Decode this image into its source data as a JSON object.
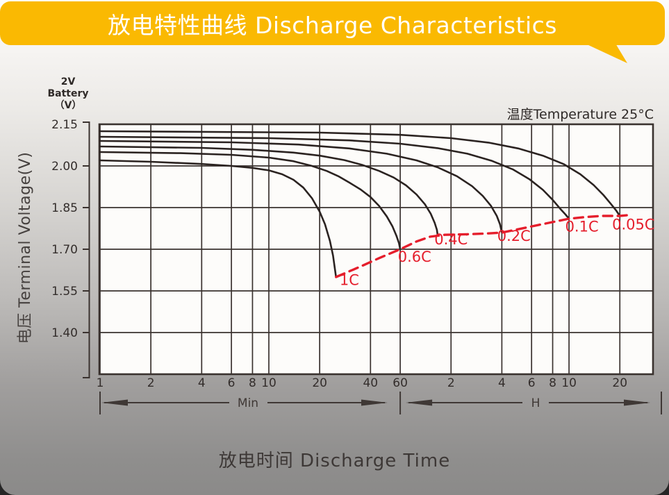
{
  "banner": {
    "title": "放电特性曲线 Discharge Characteristics",
    "color": "#FAB902",
    "text_color": "#FFFFFF"
  },
  "footer_title": "放电时间 Discharge Time",
  "chart_data": {
    "type": "line",
    "title": "放电特性曲线 Discharge Characteristics",
    "xlabel": "放电时间 Discharge Time",
    "ylabel": "电压 Terminal Voltage(V)",
    "battery_note": {
      "lines": [
        "2V",
        "Battery",
        "（V）"
      ]
    },
    "annotation": "温度Temperature 25°C",
    "x_scale": "log",
    "x_unit_groups": [
      {
        "unit": "Min",
        "ticks": [
          1,
          2,
          4,
          6,
          8,
          10,
          20,
          40,
          60
        ]
      },
      {
        "unit": "H",
        "ticks": [
          2,
          4,
          6,
          8,
          10,
          20
        ]
      }
    ],
    "y_ticks": [
      "2.15",
      "2.00",
      "1.85",
      "1.70",
      "1.55",
      "1.40"
    ],
    "ylim": [
      1.25,
      2.15
    ],
    "xlim_minutes": [
      1,
      1900
    ],
    "grid": true,
    "colors": {
      "curve": "#2B2321",
      "grid": "#3A322F",
      "envelope": "#E51E2C",
      "text": "#332D2B",
      "arrow": "#3F3835"
    },
    "series": [
      {
        "name": "1C",
        "points": [
          [
            1,
            2.02
          ],
          [
            2,
            2.015
          ],
          [
            4,
            2.007
          ],
          [
            6,
            2.0
          ],
          [
            8,
            1.993
          ],
          [
            10,
            1.984
          ],
          [
            12,
            1.97
          ],
          [
            14,
            1.95
          ],
          [
            16,
            1.922
          ],
          [
            18,
            1.884
          ],
          [
            20,
            1.835
          ],
          [
            21.5,
            1.79
          ],
          [
            23,
            1.73
          ],
          [
            24,
            1.677
          ],
          [
            25,
            1.6
          ]
        ]
      },
      {
        "name": "0.6C",
        "points": [
          [
            1,
            2.05
          ],
          [
            3,
            2.046
          ],
          [
            6,
            2.04
          ],
          [
            10,
            2.03
          ],
          [
            14,
            2.017
          ],
          [
            18,
            2.0
          ],
          [
            22,
            1.982
          ],
          [
            26,
            1.962
          ],
          [
            30,
            1.94
          ],
          [
            35,
            1.915
          ],
          [
            40,
            1.888
          ],
          [
            45,
            1.856
          ],
          [
            50,
            1.818
          ],
          [
            54,
            1.782
          ],
          [
            57,
            1.748
          ],
          [
            59,
            1.722
          ],
          [
            60,
            1.7
          ]
        ]
      },
      {
        "name": "0.4C",
        "points": [
          [
            1,
            2.07
          ],
          [
            4,
            2.065
          ],
          [
            8,
            2.058
          ],
          [
            14,
            2.048
          ],
          [
            20,
            2.037
          ],
          [
            28,
            2.021
          ],
          [
            36,
            2.003
          ],
          [
            45,
            1.982
          ],
          [
            55,
            1.958
          ],
          [
            65,
            1.93
          ],
          [
            75,
            1.897
          ],
          [
            84,
            1.862
          ],
          [
            91,
            1.828
          ],
          [
            96,
            1.795
          ],
          [
            99,
            1.77
          ],
          [
            100,
            1.75
          ]
        ]
      },
      {
        "name": "0.2C",
        "points": [
          [
            1,
            2.09
          ],
          [
            6,
            2.085
          ],
          [
            15,
            2.077
          ],
          [
            30,
            2.063
          ],
          [
            50,
            2.044
          ],
          [
            75,
            2.02
          ],
          [
            100,
            1.995
          ],
          [
            130,
            1.963
          ],
          [
            160,
            1.927
          ],
          [
            185,
            1.892
          ],
          [
            207,
            1.856
          ],
          [
            224,
            1.82
          ],
          [
            234,
            1.79
          ],
          [
            240,
            1.76
          ]
        ]
      },
      {
        "name": "0.1C",
        "points": [
          [
            1,
            2.105
          ],
          [
            10,
            2.1
          ],
          [
            30,
            2.092
          ],
          [
            60,
            2.08
          ],
          [
            100,
            2.064
          ],
          [
            150,
            2.044
          ],
          [
            210,
            2.018
          ],
          [
            280,
            1.987
          ],
          [
            350,
            1.952
          ],
          [
            420,
            1.914
          ],
          [
            480,
            1.878
          ],
          [
            530,
            1.847
          ],
          [
            570,
            1.826
          ],
          [
            600,
            1.81
          ]
        ]
      },
      {
        "name": "0.05C",
        "points": [
          [
            1,
            2.125
          ],
          [
            20,
            2.12
          ],
          [
            60,
            2.112
          ],
          [
            120,
            2.1
          ],
          [
            200,
            2.084
          ],
          [
            300,
            2.063
          ],
          [
            420,
            2.037
          ],
          [
            560,
            2.006
          ],
          [
            700,
            1.97
          ],
          [
            840,
            1.931
          ],
          [
            960,
            1.895
          ],
          [
            1060,
            1.864
          ],
          [
            1140,
            1.84
          ],
          [
            1200,
            1.82
          ]
        ]
      }
    ],
    "envelope": {
      "name": "discharge-cutoff-line",
      "style": "dashed",
      "points": [
        [
          25,
          1.6
        ],
        [
          35,
          1.638
        ],
        [
          45,
          1.668
        ],
        [
          60,
          1.7
        ],
        [
          75,
          1.728
        ],
        [
          90,
          1.745
        ],
        [
          110,
          1.752
        ],
        [
          150,
          1.754
        ],
        [
          200,
          1.757
        ],
        [
          240,
          1.76
        ],
        [
          300,
          1.772
        ],
        [
          400,
          1.788
        ],
        [
          500,
          1.8
        ],
        [
          600,
          1.81
        ],
        [
          750,
          1.816
        ],
        [
          950,
          1.82
        ],
        [
          1200,
          1.82
        ],
        [
          1400,
          1.824
        ]
      ]
    },
    "rate_labels": [
      {
        "text": "1C",
        "t": 30,
        "v": 1.571
      },
      {
        "text": "0.6C",
        "t": 73,
        "v": 1.655
      },
      {
        "text": "0.4C",
        "t": 120,
        "v": 1.717
      },
      {
        "text": "0.2C",
        "t": 283,
        "v": 1.73
      },
      {
        "text": "0.1C",
        "t": 715,
        "v": 1.764
      },
      {
        "text": "0.05C",
        "t": 1445,
        "v": 1.771
      }
    ]
  }
}
